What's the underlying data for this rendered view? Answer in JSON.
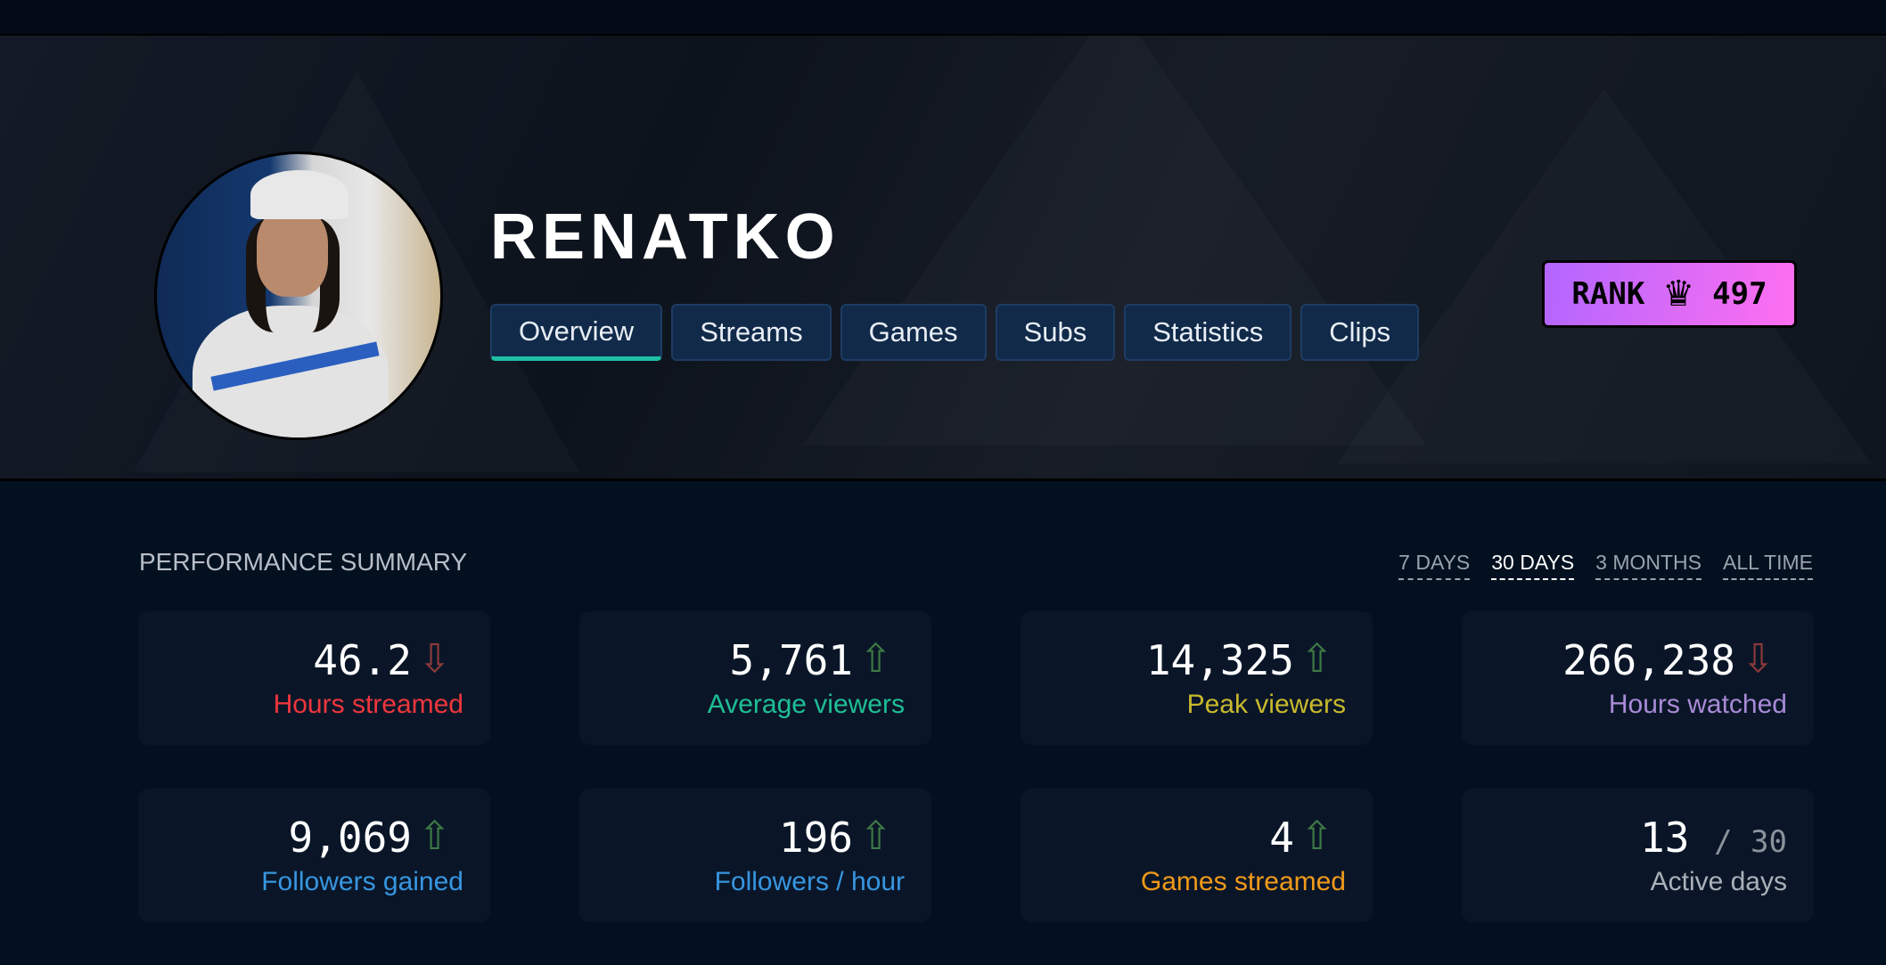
{
  "channel": {
    "name": "RENATKO"
  },
  "tabs": [
    {
      "label": "Overview",
      "active": true
    },
    {
      "label": "Streams"
    },
    {
      "label": "Games"
    },
    {
      "label": "Subs"
    },
    {
      "label": "Statistics"
    },
    {
      "label": "Clips"
    }
  ],
  "rank": {
    "label": "RANK",
    "icon": "crown-icon",
    "value": "497"
  },
  "summary": {
    "title": "PERFORMANCE SUMMARY",
    "periods": [
      {
        "label": "7 DAYS"
      },
      {
        "label": "30 DAYS",
        "active": true
      },
      {
        "label": "3 MONTHS"
      },
      {
        "label": "ALL TIME"
      }
    ],
    "cards": [
      {
        "value": "46.2",
        "label": "Hours streamed",
        "trend": "down",
        "color": "#f0363d"
      },
      {
        "value": "5,761",
        "label": "Average viewers",
        "trend": "up",
        "color": "#1fbf95"
      },
      {
        "value": "14,325",
        "label": "Peak viewers",
        "trend": "up",
        "color": "#c9b92c"
      },
      {
        "value": "266,238",
        "label": "Hours watched",
        "trend": "down",
        "color": "#a98ad6"
      },
      {
        "value": "9,069",
        "label": "Followers gained",
        "trend": "up",
        "color": "#3796e0"
      },
      {
        "value": "196",
        "label": "Followers / hour",
        "trend": "up",
        "color": "#3796e0"
      },
      {
        "value": "4",
        "label": "Games streamed",
        "trend": "up",
        "color": "#f29a1a"
      },
      {
        "value": "13",
        "suffix": "/ 30",
        "label": "Active days",
        "color": "#a9b0b8"
      }
    ]
  },
  "colors": {
    "up": "#3f7a45",
    "down": "#8b3a3a",
    "accent": "#1fbfa5"
  }
}
